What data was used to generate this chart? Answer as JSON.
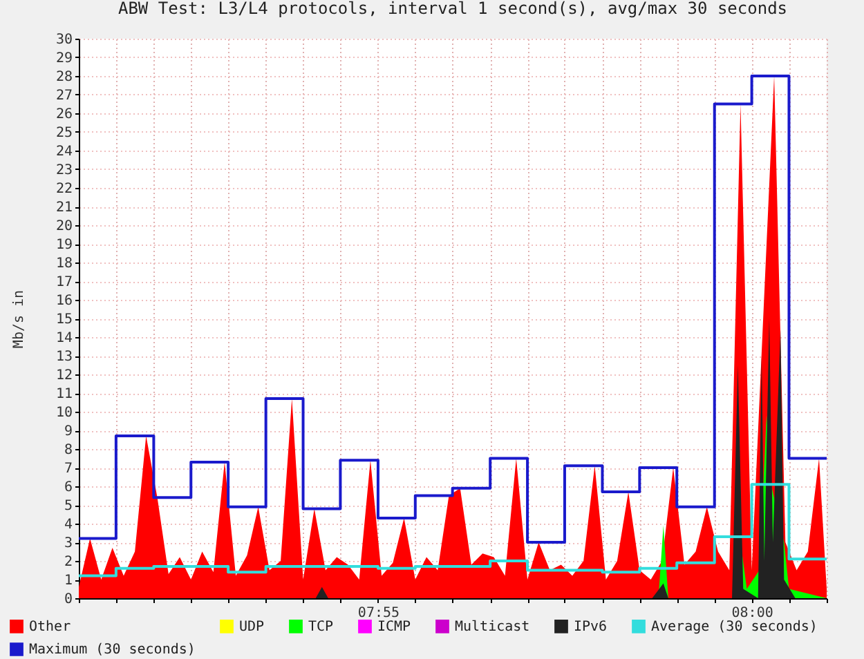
{
  "chart_data": {
    "type": "area",
    "title": "ABW Test: L3/L4 protocols, interval 1 second(s), avg/max 30 seconds",
    "ylabel": "Mb/s in",
    "xlim": [
      7.85,
      8.0167
    ],
    "xticks": [
      {
        "value": 7.85,
        "label": null
      },
      {
        "value": 7.8583,
        "label": null
      },
      {
        "value": 7.8667,
        "label": null
      },
      {
        "value": 7.875,
        "label": null
      },
      {
        "value": 7.8833,
        "label": null
      },
      {
        "value": 7.8917,
        "label": null
      },
      {
        "value": 7.9,
        "label": null
      },
      {
        "value": 7.9083,
        "label": null
      },
      {
        "value": 7.9167,
        "label": "07:55"
      },
      {
        "value": 7.925,
        "label": null
      },
      {
        "value": 7.9333,
        "label": null
      },
      {
        "value": 7.9417,
        "label": null
      },
      {
        "value": 7.95,
        "label": null
      },
      {
        "value": 7.9583,
        "label": null
      },
      {
        "value": 7.9667,
        "label": null
      },
      {
        "value": 7.975,
        "label": null
      },
      {
        "value": 7.9833,
        "label": null
      },
      {
        "value": 7.9917,
        "label": null
      },
      {
        "value": 8,
        "label": "08:00"
      },
      {
        "value": 8.0083,
        "label": null
      },
      {
        "value": 8.0167,
        "label": null
      }
    ],
    "ylim": [
      0,
      30
    ],
    "yticks": [
      0,
      1,
      2,
      3,
      4,
      5,
      6,
      7,
      8,
      9,
      10,
      11,
      12,
      13,
      14,
      15,
      16,
      17,
      18,
      19,
      20,
      21,
      22,
      23,
      24,
      25,
      26,
      27,
      28,
      29,
      30
    ],
    "grid": true,
    "legend": "bottom",
    "series": [
      {
        "name": "Other",
        "color": "#ff0000",
        "x": [
          7.85,
          7.8525,
          7.855,
          7.8575,
          7.86,
          7.8625,
          7.865,
          7.8675,
          7.87,
          7.8725,
          7.875,
          7.8775,
          7.88,
          7.8825,
          7.885,
          7.8875,
          7.89,
          7.8925,
          7.895,
          7.8975,
          7.9,
          7.9025,
          7.905,
          7.9075,
          7.91,
          7.9125,
          7.915,
          7.9175,
          7.92,
          7.9225,
          7.925,
          7.9275,
          7.93,
          7.9325,
          7.935,
          7.9375,
          7.94,
          7.9425,
          7.945,
          7.9475,
          7.95,
          7.9525,
          7.955,
          7.9575,
          7.96,
          7.9625,
          7.965,
          7.9675,
          7.97,
          7.9725,
          7.975,
          7.9775,
          7.98,
          7.9825,
          7.985,
          7.9875,
          7.99,
          7.9925,
          7.995,
          7.9975,
          8,
          8.0025,
          8.005,
          8.0075,
          8.01,
          8.0125,
          8.015,
          8.0167
        ],
        "values": [
          0.6,
          3.2,
          1.0,
          2.7,
          1.2,
          2.5,
          8.7,
          5.4,
          1.3,
          2.2,
          1.0,
          2.5,
          1.4,
          7.3,
          1.2,
          2.3,
          4.9,
          1.5,
          2.0,
          10.7,
          1.0,
          4.8,
          1.5,
          2.2,
          1.8,
          1.0,
          7.4,
          1.2,
          1.9,
          4.3,
          1.0,
          2.2,
          1.5,
          5.5,
          5.9,
          1.8,
          2.4,
          2.2,
          1.2,
          7.5,
          1.0,
          3.0,
          1.5,
          1.8,
          1.2,
          2.0,
          7.1,
          1.0,
          2.0,
          5.7,
          1.5,
          1.0,
          2.0,
          7.0,
          1.8,
          2.5,
          4.9,
          2.5,
          1.5,
          26.5,
          1.5,
          null,
          28.0,
          3.0,
          1.5,
          2.5,
          7.5,
          0.5
        ]
      },
      {
        "name": "UDP",
        "color": "#ffff00"
      },
      {
        "name": "TCP",
        "color": "#00ff00",
        "x": [
          7.85,
          7.9792,
          7.9803,
          7.9814,
          7.9958,
          7.9975,
          7.9989,
          8.0017,
          8.0033,
          8.0044,
          8.0061,
          8.0072,
          8.0083,
          8.0167
        ],
        "values": [
          0,
          0,
          3.9,
          0,
          0,
          3.0,
          0.5,
          1.5,
          9.8,
          6.0,
          null,
          3.0,
          0.5,
          0
        ]
      },
      {
        "name": "ICMP",
        "color": "#ff00ff"
      },
      {
        "name": "Multicast",
        "color": "#cc00cc"
      },
      {
        "name": "IPv6",
        "color": "#222222",
        "x": [
          7.85,
          7.9028,
          7.9042,
          7.9056,
          7.9778,
          7.9803,
          7.9814,
          7.9956,
          7.9969,
          7.9981,
          8.0014,
          8.0022,
          8.0028,
          8.0039,
          8.0047,
          8.0064,
          8.0072,
          8.0097,
          8.0167
        ],
        "values": [
          0,
          0,
          0.6,
          0,
          0,
          0.8,
          0,
          0,
          12.5,
          0.5,
          0,
          13.0,
          2.0,
          15.0,
          3.0,
          14.4,
          1.0,
          0,
          0
        ]
      },
      {
        "name": "Average (30 seconds)",
        "type": "step",
        "color": "#33dddd",
        "x": [
          7.85,
          7.8583,
          7.8667,
          7.875,
          7.8833,
          7.8917,
          7.9,
          7.9083,
          7.9167,
          7.925,
          7.9333,
          7.9417,
          7.95,
          7.9583,
          7.9667,
          7.975,
          7.9833,
          7.9917,
          8,
          8.0083,
          8.0167
        ],
        "values": [
          1.2,
          1.6,
          1.7,
          1.7,
          1.4,
          1.7,
          1.7,
          1.7,
          1.6,
          1.7,
          1.7,
          2.0,
          1.5,
          1.5,
          1.4,
          1.6,
          1.9,
          3.3,
          6.1,
          2.1,
          2.1
        ]
      },
      {
        "name": "Maximum (30 seconds)",
        "type": "step",
        "color": "#1a1acc",
        "x": [
          7.85,
          7.8583,
          7.8667,
          7.875,
          7.8833,
          7.8917,
          7.9,
          7.9083,
          7.9167,
          7.925,
          7.9333,
          7.9417,
          7.95,
          7.9583,
          7.9667,
          7.975,
          7.9833,
          7.9917,
          8,
          8.0083,
          8.0167
        ],
        "values": [
          3.2,
          8.7,
          5.4,
          7.3,
          4.9,
          10.7,
          4.8,
          7.4,
          4.3,
          5.5,
          5.9,
          7.5,
          3.0,
          7.1,
          5.7,
          7.0,
          4.9,
          26.5,
          28.0,
          7.5,
          7.5
        ]
      }
    ]
  }
}
